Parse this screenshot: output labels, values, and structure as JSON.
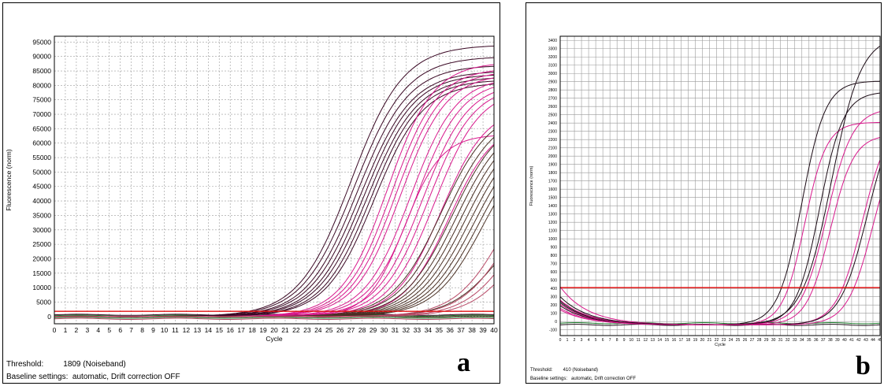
{
  "chart_data": [
    {
      "panel_label": "a",
      "type": "line",
      "xlabel": "Cycle",
      "ylabel": "Fluorescence (norm)",
      "xlim": [
        0,
        40
      ],
      "ylim": [
        -2500,
        97000
      ],
      "x_ticks": [
        0,
        1,
        2,
        3,
        4,
        5,
        6,
        7,
        8,
        9,
        10,
        11,
        12,
        13,
        14,
        15,
        16,
        17,
        18,
        19,
        20,
        21,
        22,
        23,
        24,
        25,
        26,
        27,
        28,
        29,
        30,
        31,
        32,
        33,
        34,
        35,
        36,
        37,
        38,
        39,
        40
      ],
      "y_ticks": [
        0,
        5000,
        10000,
        15000,
        20000,
        25000,
        30000,
        35000,
        40000,
        45000,
        50000,
        55000,
        60000,
        65000,
        70000,
        75000,
        80000,
        85000,
        90000,
        95000
      ],
      "grid": true,
      "threshold": 1809,
      "threshold_color": "#e01010",
      "colors": {
        "dark": "#3a0824",
        "magenta": "#d8188c",
        "brown": "#4a3024",
        "rose": "#b84a68",
        "green": "#1a7a2a"
      },
      "series": [
        {
          "color": "dark",
          "midpoint": 27.0,
          "plateau": 94000,
          "slope": 0.42
        },
        {
          "color": "dark",
          "midpoint": 27.3,
          "plateau": 90000,
          "slope": 0.42
        },
        {
          "color": "dark",
          "midpoint": 27.6,
          "plateau": 87000,
          "slope": 0.43
        },
        {
          "color": "dark",
          "midpoint": 27.9,
          "plateau": 85000,
          "slope": 0.43
        },
        {
          "color": "dark",
          "midpoint": 28.2,
          "plateau": 84000,
          "slope": 0.44
        },
        {
          "color": "dark",
          "midpoint": 28.5,
          "plateau": 83000,
          "slope": 0.44
        },
        {
          "color": "dark",
          "midpoint": 28.8,
          "plateau": 82000,
          "slope": 0.45
        },
        {
          "color": "dark",
          "midpoint": 29.1,
          "plateau": 81000,
          "slope": 0.45
        },
        {
          "color": "magenta",
          "midpoint": 30.3,
          "plateau": 88000,
          "slope": 0.48
        },
        {
          "color": "magenta",
          "midpoint": 30.7,
          "plateau": 86000,
          "slope": 0.48
        },
        {
          "color": "magenta",
          "midpoint": 31.1,
          "plateau": 85000,
          "slope": 0.48
        },
        {
          "color": "magenta",
          "midpoint": 31.5,
          "plateau": 84000,
          "slope": 0.48
        },
        {
          "color": "magenta",
          "midpoint": 31.9,
          "plateau": 63000,
          "slope": 0.6
        },
        {
          "color": "magenta",
          "midpoint": 32.4,
          "plateau": 83000,
          "slope": 0.48
        },
        {
          "color": "magenta",
          "midpoint": 32.9,
          "plateau": 82000,
          "slope": 0.48
        },
        {
          "color": "magenta",
          "midpoint": 33.5,
          "plateau": 81000,
          "slope": 0.48
        },
        {
          "color": "magenta",
          "midpoint": 34.0,
          "plateau": 80000,
          "slope": 0.48
        },
        {
          "color": "magenta",
          "midpoint": 34.6,
          "plateau": 79000,
          "slope": 0.48
        },
        {
          "color": "magenta",
          "midpoint": 35.2,
          "plateau": 73000,
          "slope": 0.48
        },
        {
          "color": "magenta",
          "midpoint": 35.9,
          "plateau": 68000,
          "slope": 0.48
        },
        {
          "color": "brown",
          "midpoint": 35.2,
          "plateau": 72000,
          "slope": 0.45
        },
        {
          "color": "brown",
          "midpoint": 35.7,
          "plateau": 71000,
          "slope": 0.45
        },
        {
          "color": "brown",
          "midpoint": 36.2,
          "plateau": 70000,
          "slope": 0.45
        },
        {
          "color": "brown",
          "midpoint": 36.6,
          "plateau": 69000,
          "slope": 0.45
        },
        {
          "color": "brown",
          "midpoint": 37.0,
          "plateau": 68000,
          "slope": 0.45
        },
        {
          "color": "brown",
          "midpoint": 37.4,
          "plateau": 67000,
          "slope": 0.45
        },
        {
          "color": "brown",
          "midpoint": 37.8,
          "plateau": 66000,
          "slope": 0.45
        },
        {
          "color": "brown",
          "midpoint": 38.2,
          "plateau": 65000,
          "slope": 0.45
        },
        {
          "color": "brown",
          "midpoint": 38.6,
          "plateau": 64000,
          "slope": 0.45
        },
        {
          "color": "brown",
          "midpoint": 39.0,
          "plateau": 63000,
          "slope": 0.45
        },
        {
          "color": "brown",
          "midpoint": 40.5,
          "plateau": 40000,
          "slope": 0.45
        },
        {
          "color": "rose",
          "midpoint": 41.0,
          "plateau": 60000,
          "slope": 0.45
        },
        {
          "color": "rose",
          "midpoint": 41.5,
          "plateau": 55000,
          "slope": 0.45
        },
        {
          "color": "rose",
          "midpoint": 42.0,
          "plateau": 50000,
          "slope": 0.45
        },
        {
          "color": "rose",
          "midpoint": 42.5,
          "plateau": 45000,
          "slope": 0.45
        }
      ],
      "flat_series": [
        {
          "color": "green",
          "y": -400
        },
        {
          "color": "green",
          "y": 300
        },
        {
          "color": "brown",
          "y": 0
        },
        {
          "color": "dark",
          "y": 600
        },
        {
          "color": "rose",
          "y": -800
        }
      ],
      "threshold_text": "Threshold:         1809 (Noiseband)",
      "baseline_text": "Baseline settings:  automatic, Drift correction OFF"
    },
    {
      "panel_label": "b",
      "type": "line",
      "xlabel": "Cycle",
      "ylabel": "Fluorescence (norm)",
      "xlim": [
        0,
        45
      ],
      "ylim": [
        -170,
        3450
      ],
      "x_ticks": [
        0,
        1,
        2,
        3,
        4,
        5,
        6,
        7,
        8,
        9,
        10,
        11,
        12,
        13,
        14,
        15,
        16,
        17,
        18,
        19,
        20,
        21,
        22,
        23,
        24,
        25,
        26,
        27,
        28,
        29,
        30,
        31,
        32,
        33,
        34,
        35,
        36,
        37,
        38,
        39,
        40,
        41,
        42,
        43,
        44,
        45
      ],
      "y_ticks": [
        -100,
        0,
        100,
        200,
        300,
        400,
        500,
        600,
        700,
        800,
        900,
        1000,
        1100,
        1200,
        1300,
        1400,
        1500,
        1600,
        1700,
        1800,
        1900,
        2000,
        2100,
        2200,
        2300,
        2400,
        2500,
        2600,
        2700,
        2800,
        2900,
        3000,
        3100,
        3200,
        3300,
        3400
      ],
      "grid": true,
      "threshold": 410,
      "threshold_color": "#e01010",
      "colors": {
        "dark": "#1a0a14",
        "magenta": "#d8188c",
        "green": "#1a7a2a"
      },
      "series": [
        {
          "color": "dark",
          "midpoint": 34.0,
          "plateau": 2950,
          "slope": 0.6,
          "start": 230
        },
        {
          "color": "magenta",
          "midpoint": 34.4,
          "plateau": 2450,
          "slope": 0.65,
          "start": 210
        },
        {
          "color": "dark",
          "midpoint": 36.5,
          "plateau": 2820,
          "slope": 0.6,
          "start": 190
        },
        {
          "color": "dark",
          "midpoint": 38.2,
          "plateau": 3500,
          "slope": 0.48,
          "start": 250
        },
        {
          "color": "magenta",
          "midpoint": 37.5,
          "plateau": 2620,
          "slope": 0.55,
          "start": 160
        },
        {
          "color": "magenta",
          "midpoint": 38.0,
          "plateau": 2300,
          "slope": 0.6,
          "start": 420
        },
        {
          "color": "magenta",
          "midpoint": 42.5,
          "plateau": 2500,
          "slope": 0.55,
          "start": 260
        },
        {
          "color": "dark",
          "midpoint": 43.2,
          "plateau": 2650,
          "slope": 0.52,
          "start": 300
        },
        {
          "color": "magenta",
          "midpoint": 44.0,
          "plateau": 2400,
          "slope": 0.55,
          "start": 140
        }
      ],
      "flat_series": [
        {
          "color": "green",
          "y": -20
        },
        {
          "color": "dark",
          "y": -40
        }
      ],
      "threshold_text": "Threshold:        410 (Noiseband)",
      "baseline_text": "Baseline settings:   automatic, Drift correction OFF"
    }
  ]
}
